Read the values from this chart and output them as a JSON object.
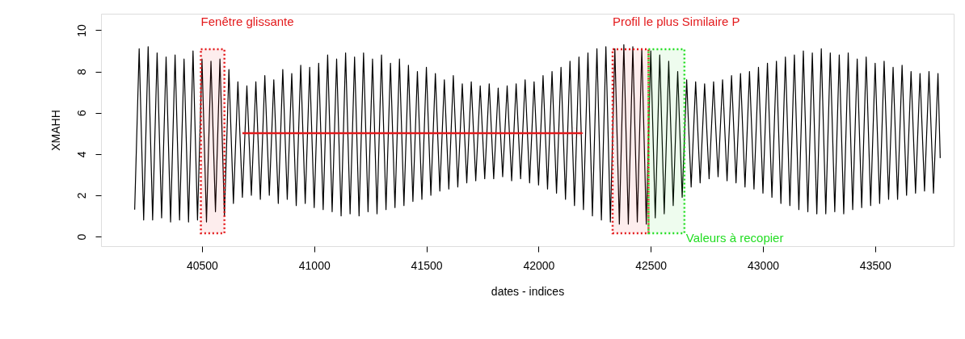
{
  "chart_data": {
    "type": "line",
    "xlabel": "dates - indices",
    "ylabel": "XMAHH",
    "xlim": [
      40050,
      43850
    ],
    "ylim": [
      -0.47,
      10.8
    ],
    "xticks": [
      40500,
      41000,
      41500,
      42000,
      42500,
      43000,
      43500
    ],
    "yticks": [
      0,
      2,
      4,
      6,
      8,
      10
    ],
    "grid": false,
    "line_style": "solid",
    "bands": [
      {
        "axis": "x",
        "from": 40495,
        "to": 40600,
        "label": "Fenêtre glissante",
        "color": "#e31a1c"
      },
      {
        "axis": "x",
        "from": 42330,
        "to": 42490,
        "label": "Profil le plus Similaire P",
        "color": "#e31a1c"
      },
      {
        "axis": "x",
        "from": 42490,
        "to": 42650,
        "label": "Valeurs à recopier",
        "color": "#22dd22"
      }
    ],
    "series": [
      {
        "color": "#000000",
        "x": [
          40200,
          40220,
          40240,
          40260,
          40280,
          40300,
          40320,
          40340,
          40360,
          40380,
          40400,
          40420,
          40440,
          40460,
          40480,
          40500,
          40520,
          40540,
          40560,
          40580,
          40600,
          40620,
          40640,
          40660,
          40680,
          40700,
          40720,
          40740,
          40760,
          40780,
          40800,
          40820,
          40840,
          40860,
          40880,
          40900,
          40920,
          40940,
          40960,
          40980,
          41000,
          41020,
          41040,
          41060,
          41080,
          41100,
          41120,
          41140,
          41160,
          41180,
          41200,
          41220,
          41240,
          41260,
          41280,
          41300,
          41320,
          41340,
          41360,
          41380,
          41400,
          41420,
          41440,
          41460,
          41480,
          41500,
          41520,
          41540,
          41560,
          41580,
          41600,
          41620,
          41640,
          41660,
          41680,
          41700,
          41720,
          41740,
          41760,
          41780,
          41800,
          41820,
          41840,
          41860,
          41880,
          41900,
          41920,
          41940,
          41960,
          41980,
          42000,
          42020,
          42040,
          42060,
          42080,
          42100,
          42120,
          42140,
          42160,
          42180,
          42200,
          42220,
          42240,
          42260,
          42280,
          42300,
          42320,
          42340,
          42360,
          42380,
          42400,
          42420,
          42440,
          42460,
          42480,
          42500,
          42520,
          42540,
          42560,
          42580,
          42600,
          42620,
          42640,
          42660,
          42680,
          42700,
          42720,
          42740,
          42760,
          42780,
          42800,
          42820,
          42840,
          42860,
          42880,
          42900,
          42920,
          42940,
          42960,
          42980,
          43000,
          43020,
          43040,
          43060,
          43080,
          43100,
          43120,
          43140,
          43160,
          43180,
          43200,
          43220,
          43240,
          43260,
          43280,
          43300,
          43320,
          43340,
          43360,
          43380,
          43400,
          43420,
          43440,
          43460,
          43480,
          43500,
          43520,
          43540,
          43560,
          43580,
          43600,
          43620,
          43640,
          43660,
          43680,
          43700,
          43720,
          43740,
          43760,
          43780,
          43790
        ],
        "values": [
          1.3,
          9.1,
          0.8,
          9.2,
          0.8,
          8.9,
          0.9,
          8.7,
          0.7,
          8.8,
          0.8,
          8.6,
          0.7,
          9.0,
          0.8,
          8.6,
          0.7,
          8.5,
          1.2,
          8.6,
          1.0,
          8.1,
          1.6,
          7.5,
          1.9,
          7.3,
          2.0,
          7.5,
          1.8,
          7.8,
          2.0,
          7.6,
          1.6,
          8.1,
          1.8,
          7.9,
          1.5,
          8.3,
          1.6,
          8.2,
          1.4,
          8.4,
          1.3,
          8.8,
          1.2,
          8.6,
          1.0,
          8.9,
          1.1,
          8.7,
          1.0,
          8.9,
          1.2,
          8.6,
          1.1,
          8.8,
          1.3,
          8.4,
          1.4,
          8.6,
          1.5,
          8.3,
          1.7,
          8.0,
          1.8,
          8.2,
          2.0,
          7.9,
          2.2,
          7.6,
          2.3,
          7.8,
          2.4,
          7.4,
          2.6,
          7.5,
          2.7,
          7.3,
          2.8,
          7.4,
          2.8,
          7.2,
          2.9,
          7.3,
          2.7,
          7.4,
          2.8,
          7.6,
          2.6,
          7.5,
          2.5,
          7.8,
          2.3,
          8.0,
          2.1,
          8.2,
          1.8,
          8.5,
          1.5,
          8.7,
          1.3,
          8.9,
          1.0,
          9.1,
          0.8,
          9.2,
          0.7,
          9.1,
          0.6,
          9.3,
          0.6,
          9.2,
          0.7,
          9.1,
          0.6,
          9.0,
          0.9,
          8.8,
          1.1,
          8.5,
          1.5,
          8.0,
          1.9,
          7.6,
          2.4,
          7.5,
          2.6,
          7.4,
          2.8,
          7.5,
          2.9,
          7.6,
          2.7,
          7.8,
          2.6,
          7.9,
          2.4,
          8.0,
          2.3,
          8.2,
          2.1,
          8.4,
          1.9,
          8.5,
          1.6,
          8.7,
          1.5,
          8.8,
          1.3,
          9.0,
          1.2,
          8.9,
          1.1,
          9.1,
          1.1,
          8.9,
          1.2,
          8.8,
          1.1,
          8.9,
          1.3,
          8.6,
          1.4,
          8.7,
          1.5,
          8.4,
          1.6,
          8.5,
          1.8,
          8.2,
          1.8,
          8.3,
          2.0,
          8.0,
          2.1,
          7.9,
          2.2,
          8.0,
          2.1,
          7.9,
          3.8
        ]
      }
    ]
  }
}
